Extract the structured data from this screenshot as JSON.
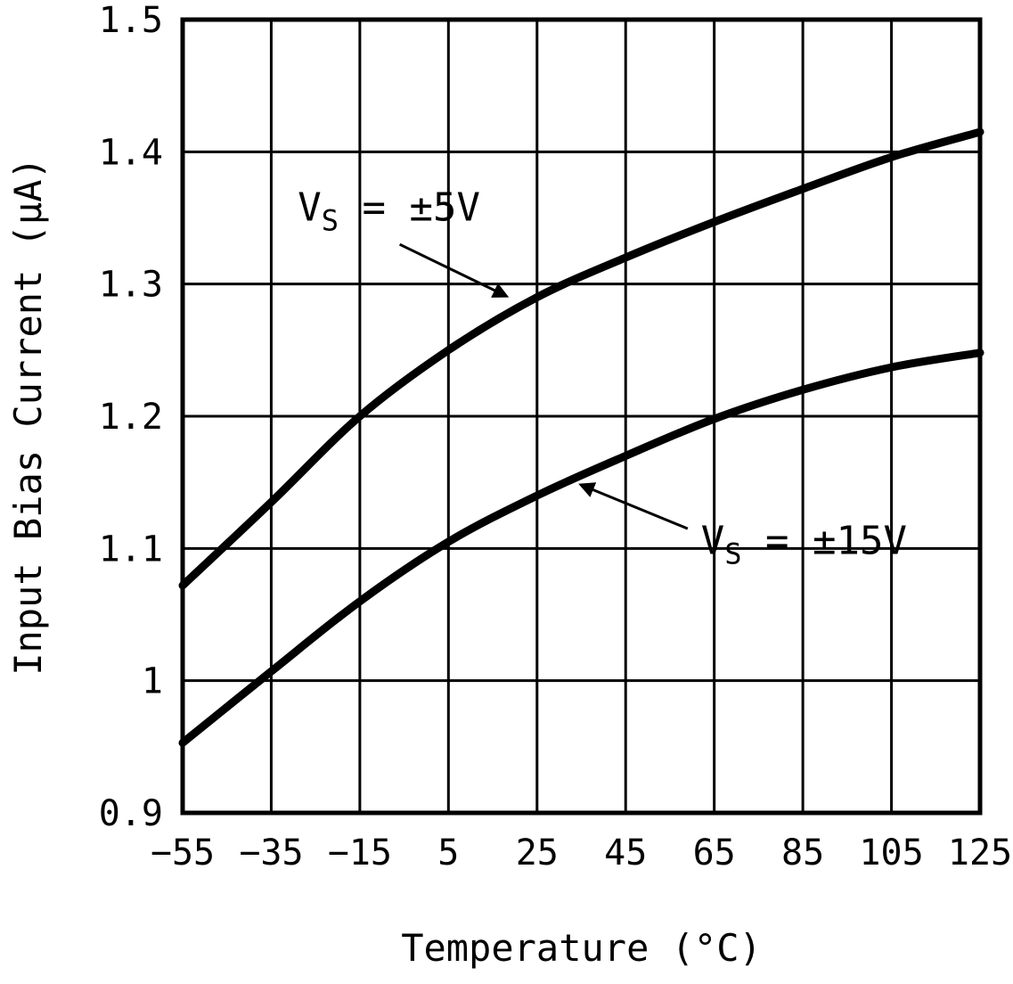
{
  "chart_data": {
    "type": "line",
    "title": "",
    "xlabel": "Temperature (°C)",
    "ylabel": "Input Bias Current (μA)",
    "xlim": [
      -55,
      125
    ],
    "ylim": [
      0.9,
      1.5
    ],
    "grid": true,
    "line_color": "#000000",
    "background": "#ffffff",
    "xticks": [
      -55,
      -35,
      -15,
      5,
      25,
      45,
      65,
      85,
      105,
      125
    ],
    "xtick_labels": [
      "−55",
      "−35",
      "−15",
      "5",
      "25",
      "45",
      "65",
      "85",
      "105",
      "125"
    ],
    "yticks": [
      0.9,
      1.0,
      1.1,
      1.2,
      1.3,
      1.4,
      1.5
    ],
    "ytick_labels": [
      "0.9",
      "1",
      "1.1",
      "1.2",
      "1.3",
      "1.4",
      "1.5"
    ],
    "x": [
      -55,
      -35,
      -15,
      5,
      25,
      45,
      65,
      85,
      105,
      125
    ],
    "series": [
      {
        "name": "VS = ±5V",
        "values": [
          1.072,
          1.135,
          1.2,
          1.25,
          1.29,
          1.32,
          1.347,
          1.372,
          1.396,
          1.415
        ]
      },
      {
        "name": "VS = ±15V",
        "values": [
          0.953,
          1.007,
          1.06,
          1.105,
          1.14,
          1.17,
          1.198,
          1.22,
          1.237,
          1.248
        ]
      }
    ],
    "annotations": [
      {
        "label": {
          "main": "V",
          "sub": "S",
          "rest": " = ±5V"
        },
        "text_pos": [
          -29,
          1.348
        ],
        "arrow_from": [
          -6,
          1.33
        ],
        "arrow_to": [
          18,
          1.291
        ]
      },
      {
        "label": {
          "main": "V",
          "sub": "S",
          "rest": " = ±15V"
        },
        "text_pos": [
          62,
          1.096
        ],
        "arrow_from": [
          59,
          1.115
        ],
        "arrow_to": [
          35,
          1.148
        ]
      }
    ]
  }
}
